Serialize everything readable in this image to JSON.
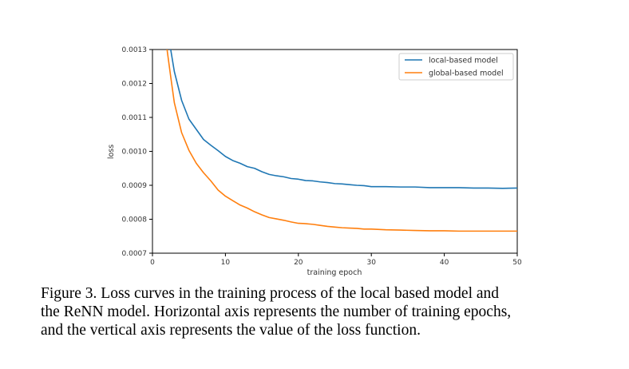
{
  "chart_data": {
    "type": "line",
    "xlabel": "training epoch",
    "ylabel": "loss",
    "xlim": [
      0,
      50
    ],
    "ylim": [
      0.0007,
      0.0013
    ],
    "x_ticks": [
      "0",
      "10",
      "20",
      "30",
      "40",
      "50"
    ],
    "y_ticks": [
      "0.0007",
      "0.0008",
      "0.0009",
      "0.0010",
      "0.0011",
      "0.0012",
      "0.0013"
    ],
    "grid": false,
    "legend_position": "top-right",
    "series": [
      {
        "name": "local-based model",
        "color": "#1f77b4",
        "x": [
          2.5,
          3,
          4,
          5,
          6,
          7,
          8,
          9,
          10,
          11,
          12,
          13,
          14,
          15,
          16,
          17,
          18,
          19,
          20,
          21,
          22,
          23,
          24,
          25,
          26,
          27,
          28,
          29,
          30,
          32,
          34,
          36,
          38,
          40,
          42,
          44,
          46,
          48,
          50
        ],
        "y": [
          0.0013,
          0.001235,
          0.00115,
          0.001095,
          0.001065,
          0.001035,
          0.001018,
          0.001002,
          0.000985,
          0.000973,
          0.000965,
          0.000955,
          0.00095,
          0.00094,
          0.000932,
          0.000928,
          0.000925,
          0.00092,
          0.000918,
          0.000914,
          0.000913,
          0.00091,
          0.000908,
          0.000905,
          0.000904,
          0.000902,
          0.0009,
          0.000899,
          0.000896,
          0.000896,
          0.000895,
          0.000895,
          0.000893,
          0.000893,
          0.000893,
          0.000892,
          0.000892,
          0.000891,
          0.000892
        ]
      },
      {
        "name": "global-based model",
        "color": "#ff7f0e",
        "x": [
          2,
          2.5,
          3,
          4,
          5,
          6,
          7,
          8,
          9,
          10,
          11,
          12,
          13,
          14,
          15,
          16,
          17,
          18,
          19,
          20,
          21,
          22,
          23,
          24,
          25,
          26,
          27,
          28,
          29,
          30,
          32,
          34,
          36,
          38,
          40,
          42,
          44,
          46,
          48,
          50
        ],
        "y": [
          0.0013,
          0.00122,
          0.001143,
          0.001055,
          0.001003,
          0.000965,
          0.000937,
          0.000913,
          0.000886,
          0.000868,
          0.000855,
          0.000842,
          0.000833,
          0.000822,
          0.000813,
          0.000805,
          0.000801,
          0.000797,
          0.000792,
          0.000788,
          0.000787,
          0.000785,
          0.000782,
          0.000779,
          0.000777,
          0.000775,
          0.000774,
          0.000773,
          0.000771,
          0.000771,
          0.000769,
          0.000768,
          0.000767,
          0.000766,
          0.000766,
          0.000765,
          0.000765,
          0.000765,
          0.000765,
          0.000765
        ]
      }
    ]
  },
  "caption": {
    "lines": [
      "Figure 3. Loss curves in the training process of the local based model and",
      "the ReNN model. Horizontal axis represents the number of training epochs,",
      "and the vertical axis represents the value of the loss function."
    ]
  }
}
